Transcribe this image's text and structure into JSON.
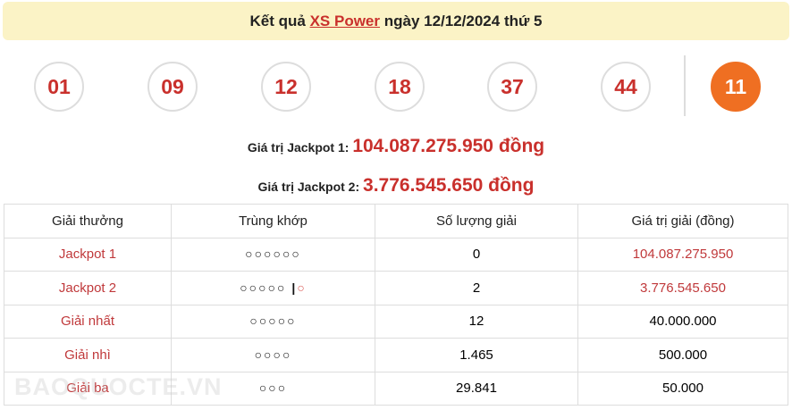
{
  "header": {
    "prefix": "Kết quả",
    "link": "XS Power",
    "suffix": "ngày 12/12/2024 thứ 5"
  },
  "balls": [
    "01",
    "09",
    "12",
    "18",
    "37",
    "44"
  ],
  "power_ball": "11",
  "jackpot1": {
    "label": "Giá trị Jackpot 1:",
    "value": "104.087.275.950 đồng"
  },
  "jackpot2": {
    "label": "Giá trị Jackpot 2:",
    "value": "3.776.545.650 đồng"
  },
  "table": {
    "headers": [
      "Giải thưởng",
      "Trùng khớp",
      "Số lượng giải",
      "Giá trị giải (đồng)"
    ],
    "rows": [
      {
        "name": "Jackpot 1",
        "match": "○○○○○○",
        "extra": "",
        "count": "0",
        "value": "104.087.275.950",
        "value_red": true
      },
      {
        "name": "Jackpot 2",
        "match": "○○○○○ |",
        "extra": "○",
        "count": "2",
        "value": "3.776.545.650",
        "value_red": true
      },
      {
        "name": "Giải nhất",
        "match": "○○○○○",
        "extra": "",
        "count": "12",
        "value": "40.000.000",
        "value_red": false
      },
      {
        "name": "Giải nhì",
        "match": "○○○○",
        "extra": "",
        "count": "1.465",
        "value": "500.000",
        "value_red": false
      },
      {
        "name": "Giải ba",
        "match": "○○○",
        "extra": "",
        "count": "29.841",
        "value": "50.000",
        "value_red": false
      }
    ]
  },
  "watermark": "BAOQUOCTE.VN",
  "colors": {
    "accent": "#c9302c",
    "power": "#ef6f22",
    "banner": "#fbf3c6"
  }
}
